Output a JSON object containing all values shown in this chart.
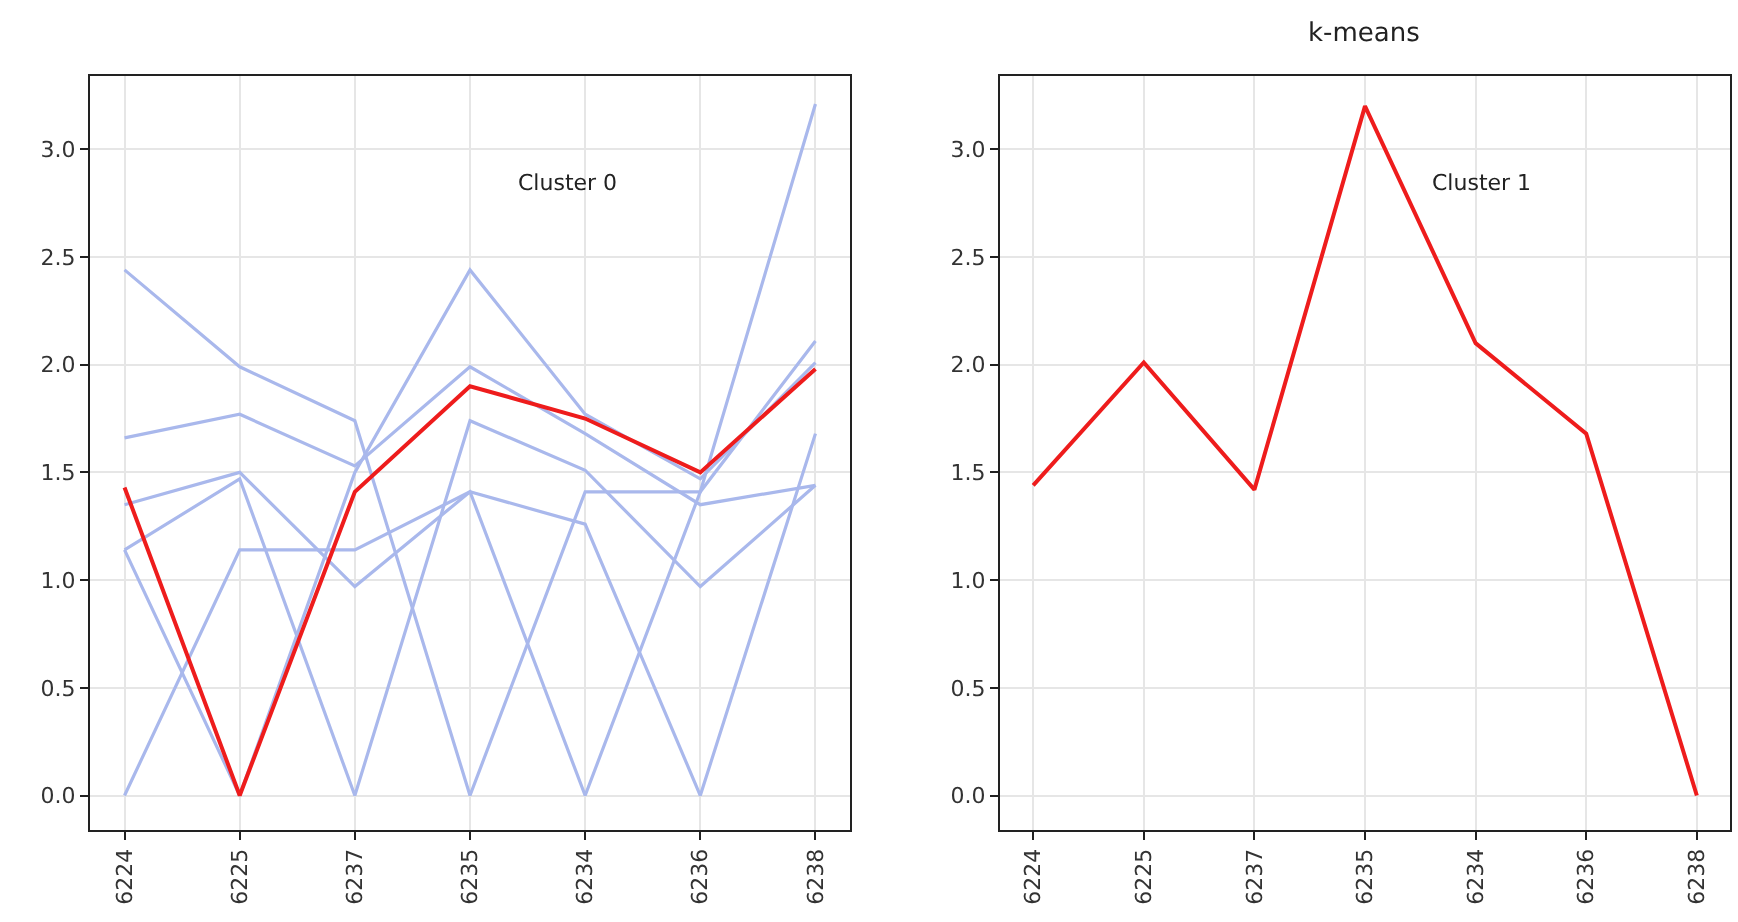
{
  "chart_data": [
    {
      "type": "line",
      "categories": [
        "6224",
        "6225",
        "6237",
        "6235",
        "6234",
        "6236",
        "6238"
      ],
      "ylim": [
        -0.16,
        3.34
      ],
      "yticks": [
        {
          "value": 0,
          "label": "0.0"
        },
        {
          "value": 0.5,
          "label": "0.5"
        },
        {
          "value": 1,
          "label": "1.0"
        },
        {
          "value": 1.5,
          "label": "1.5"
        },
        {
          "value": 2,
          "label": "2.0"
        },
        {
          "value": 2.5,
          "label": "2.5"
        },
        {
          "value": 3,
          "label": "3.0"
        }
      ],
      "grid": true,
      "annotations": [
        "Cluster 0"
      ],
      "series": [
        {
          "color": "#a9b8ec",
          "values": [
            2.44,
            1.99,
            1.74,
            0,
            1.41,
            1.41,
            2.11
          ]
        },
        {
          "color": "#a9b8ec",
          "values": [
            1.66,
            1.77,
            1.53,
            1.99,
            1.68,
            1.35,
            1.44
          ]
        },
        {
          "color": "#a9b8ec",
          "values": [
            1.35,
            1.5,
            0.97,
            1.41,
            1.26,
            0,
            1.68
          ]
        },
        {
          "color": "#a9b8ec",
          "values": [
            1.14,
            1.47,
            0,
            1.74,
            1.51,
            0.97,
            1.44
          ]
        },
        {
          "color": "#a9b8ec",
          "values": [
            1.14,
            0,
            1.5,
            2.44,
            1.77,
            1.47,
            2.01
          ]
        },
        {
          "color": "#a9b8ec",
          "values": [
            0,
            1.14,
            1.14,
            1.41,
            0,
            1.41,
            3.21
          ]
        },
        {
          "color": "#ee1c1c",
          "values": [
            1.43,
            0,
            1.41,
            1.9,
            1.75,
            1.5,
            1.98
          ]
        }
      ]
    },
    {
      "type": "line",
      "title": "k-means",
      "categories": [
        "6224",
        "6225",
        "6237",
        "6235",
        "6234",
        "6236",
        "6238"
      ],
      "ylim": [
        -0.16,
        3.34
      ],
      "yticks": [
        {
          "value": 0,
          "label": "0.0"
        },
        {
          "value": 0.5,
          "label": "0.5"
        },
        {
          "value": 1,
          "label": "1.0"
        },
        {
          "value": 1.5,
          "label": "1.5"
        },
        {
          "value": 2,
          "label": "2.0"
        },
        {
          "value": 2.5,
          "label": "2.5"
        },
        {
          "value": 3,
          "label": "3.0"
        }
      ],
      "grid": true,
      "annotations": [
        "Cluster 1"
      ],
      "series": [
        {
          "color": "#ee1c1c",
          "values": [
            1.44,
            2.01,
            1.42,
            3.2,
            2.1,
            1.68,
            0
          ]
        }
      ]
    }
  ]
}
